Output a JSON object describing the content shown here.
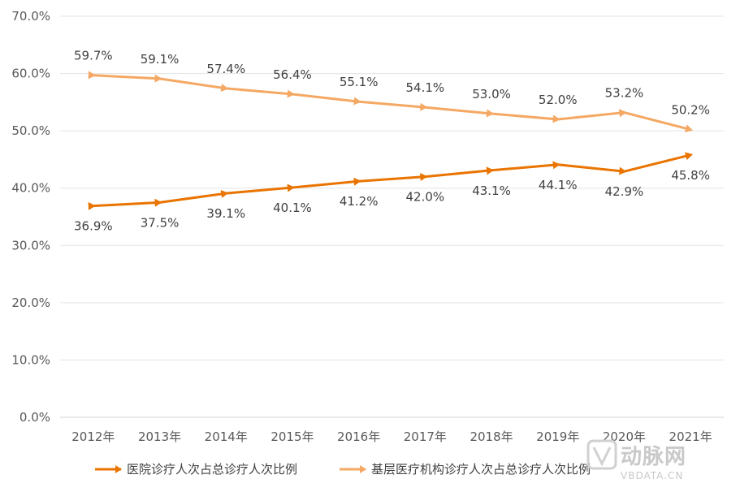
{
  "chart_data": {
    "type": "line",
    "title": "",
    "xlabel": "",
    "ylabel": "",
    "ylim": [
      0,
      70
    ],
    "y_step": 10,
    "y_tick_labels": [
      "0.0%",
      "10.0%",
      "20.0%",
      "30.0%",
      "40.0%",
      "50.0%",
      "60.0%",
      "70.0%"
    ],
    "categories": [
      "2012年",
      "2013年",
      "2014年",
      "2015年",
      "2016年",
      "2017年",
      "2018年",
      "2019年",
      "2020年",
      "2021年"
    ],
    "series": [
      {
        "name": "医院诊疗人次占总诊疗人次比例",
        "color": "#E97400",
        "values": [
          36.9,
          37.5,
          39.1,
          40.1,
          41.2,
          42.0,
          43.1,
          44.1,
          42.9,
          45.8
        ],
        "labels": [
          "36.9%",
          "37.5%",
          "39.1%",
          "40.1%",
          "41.2%",
          "42.0%",
          "43.1%",
          "44.1%",
          "42.9%",
          "45.8%"
        ],
        "label_position": "below"
      },
      {
        "name": "基层医疗机构诊疗人次占总诊疗人次比例",
        "color": "#F4A863",
        "values": [
          59.7,
          59.1,
          57.4,
          56.4,
          55.1,
          54.1,
          53.0,
          52.0,
          53.2,
          50.2
        ],
        "labels": [
          "59.7%",
          "59.1%",
          "57.4%",
          "56.4%",
          "55.1%",
          "54.1%",
          "53.0%",
          "52.0%",
          "53.2%",
          "50.2%"
        ],
        "label_position": "above"
      }
    ],
    "grid": true,
    "legend_position": "bottom"
  },
  "watermark": {
    "brand_cn": "动脉网",
    "brand_en": "VBDATA.CN",
    "color": "#c9c9c9"
  }
}
